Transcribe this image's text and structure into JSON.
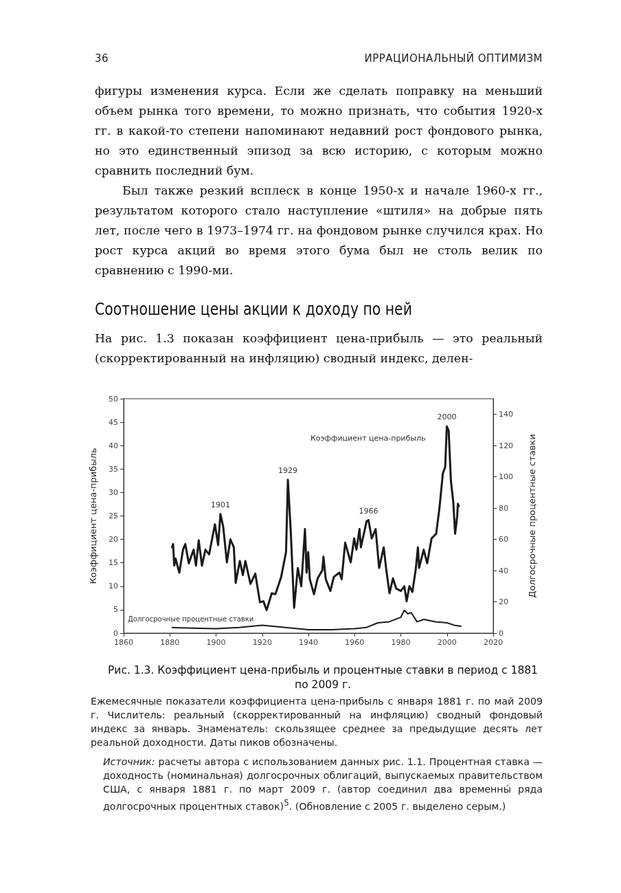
{
  "chart_data": {
    "type": "line",
    "title": "Рис. 1.3. Коэффициент цена-прибыль и процентные ставки в период с 1881 по 2009 г.",
    "ylabel": "Коэффициент цена-прибыль",
    "y2label": "Долгосрочные процентные ставки",
    "xlim": [
      1860,
      2020
    ],
    "xticks": [
      1860,
      1880,
      1900,
      1920,
      1940,
      1960,
      1980,
      2000,
      2020
    ],
    "ylim": [
      0,
      50
    ],
    "yticks": [
      0,
      5,
      10,
      15,
      20,
      25,
      30,
      35,
      40,
      45,
      50
    ],
    "y2lim": [
      0,
      150
    ],
    "y2ticks": [
      0,
      20,
      40,
      60,
      80,
      100,
      120,
      140
    ],
    "grid": false,
    "legend": false,
    "marker": "none",
    "line_style": "solid",
    "series": [
      {
        "name": "Коэффициент цена-прибыль",
        "color": "#1a1a1a",
        "x": [
          1881,
          1881.4,
          1881.9,
          1882.5,
          1884.1,
          1885.7,
          1886.7,
          1888.2,
          1890.3,
          1891.3,
          1892.5,
          1893.9,
          1895.4,
          1897,
          1899.5,
          1900.9,
          1901.9,
          1903.1,
          1904.7,
          1906.2,
          1907.7,
          1908.5,
          1910.3,
          1911.6,
          1912.7,
          1914.9,
          1917,
          1919,
          1920.5,
          1921.9,
          1924.1,
          1925.7,
          1928.2,
          1930.3,
          1931.1,
          1932.3,
          1933.8,
          1935.4,
          1936.9,
          1938.5,
          1939.2,
          1939.9,
          1940.6,
          1942.4,
          1944,
          1946,
          1946.5,
          1947.5,
          1949.5,
          1951,
          1953.4,
          1954.4,
          1955.9,
          1958.3,
          1959.8,
          1960.8,
          1962.1,
          1962.7,
          1965.2,
          1966,
          1967.4,
          1969.1,
          1970.6,
          1972.6,
          1973.6,
          1975.1,
          1976.6,
          1978,
          1980,
          1981.5,
          1982.5,
          1983.7,
          1985,
          1986.4,
          1987.4,
          1987.9,
          1989.9,
          1991.4,
          1993.3,
          1995.3,
          1996.7,
          1998.2,
          1999.2,
          1999.9,
          2000.7,
          2001.7,
          2002.7,
          2003.5,
          2004.4,
          2004.7,
          2005.1
        ],
        "values": [
          18.3,
          19,
          14.4,
          15.9,
          12.9,
          17.8,
          19,
          14.9,
          17.8,
          14.4,
          19.8,
          14.4,
          17.8,
          16.8,
          23.2,
          18.8,
          25.4,
          22.7,
          15.1,
          20,
          18.3,
          10.7,
          15.4,
          12.4,
          15.4,
          10.5,
          12.7,
          6.6,
          6.8,
          4.9,
          8.5,
          8.3,
          12,
          17.3,
          32.7,
          22.2,
          5.4,
          13.9,
          10,
          22.2,
          12.9,
          17.3,
          11.5,
          8.3,
          11.7,
          13.4,
          16.3,
          11.5,
          9,
          12,
          12.9,
          11.5,
          19.3,
          15.1,
          20.2,
          17.8,
          22.2,
          18.3,
          23.9,
          24.1,
          20.2,
          22.2,
          13.9,
          18.3,
          13.9,
          8.5,
          11.7,
          9.5,
          9,
          10,
          6.8,
          10,
          8.8,
          13.4,
          18.3,
          13.9,
          17.8,
          14.9,
          20.2,
          21.2,
          26.6,
          34.1,
          35.4,
          44.1,
          43.2,
          32.4,
          28,
          21.2,
          24.9,
          27.6,
          27.1
        ]
      },
      {
        "name": "Долгосрочные процентные ставки",
        "color": "#1a1a1a",
        "axis": "y2",
        "x": [
          1881,
          1890,
          1900,
          1910,
          1920,
          1930,
          1940,
          1950,
          1960,
          1965,
          1970,
          1975,
          1980,
          1981.5,
          1983,
          1984.5,
          1987,
          1990,
          1995,
          2000,
          2003,
          2006
        ],
        "values": [
          3.6,
          3.2,
          2.9,
          3.6,
          5.1,
          3.6,
          2.2,
          2.2,
          2.9,
          3.6,
          6.6,
          7.3,
          10.2,
          14.6,
          12.4,
          13.1,
          7.3,
          8.8,
          7.3,
          6.6,
          5.1,
          4.4
        ]
      }
    ],
    "annotations": [
      "36",
      "ИРРАЦИОНАЛЬНЫЙ ОПТИМИЗМ",
      "фигуры изменения курса. Если же сделать поправку на меньший объем рынка того времени, то можно признать, что события 1920-х гг. в какой-то степени напоминают недавний рост фондового рынка, но это единственный эпизод за всю историю, с которым можно сравнить последний бум.",
      "Был также резкий всплеск в конце 1950-х и начале 1960-х гг., результатом которого стало наступление «штиля» на добрые пять лет, после чего в 1973–1974 гг. на фондовом рынке случился крах. Но рост курса акций во время этого бума был не столь велик по сравнению с 1990-ми.",
      "Соотношение цены акции к доходу по ней",
      "На рис. 1.3 показан коэффициент цена-прибыль — это реальный (скорректированный на инфляцию) сводный индекс, делен-",
      "Ежемесячные показатели коэффициента цена-прибыль с января 1881 г. по май 2009 г. Числитель: реальный (скорректированный на инфляцию) сводный фондовый индекс за январь. Знаменатель: скользящее среднее за предыдущие десять лет реальной доходности. Даты пиков обозначены.",
      "Источник: расчеты автора с использованием данных рис. 1.1. Процентная ставка — доходность (номинальная) долгосрочных облигаций, выпускаемых правительством США, с января 1881 г. по март 2009 г. (автор соединил два временны́ ряда долгосрочных процентных ставок)$^{5}$. (Обновление с 2005 г. выделено серым.)",
      {
        "text": "1901",
        "x": 1901.9,
        "y": 25.4
      },
      {
        "text": "1929",
        "x": 1931.1,
        "y": 32.7
      },
      {
        "text": "1966",
        "x": 1966,
        "y": 24.1
      },
      {
        "text": "2000",
        "x": 1999.9,
        "y": 44.1
      }
    ]
  }
}
